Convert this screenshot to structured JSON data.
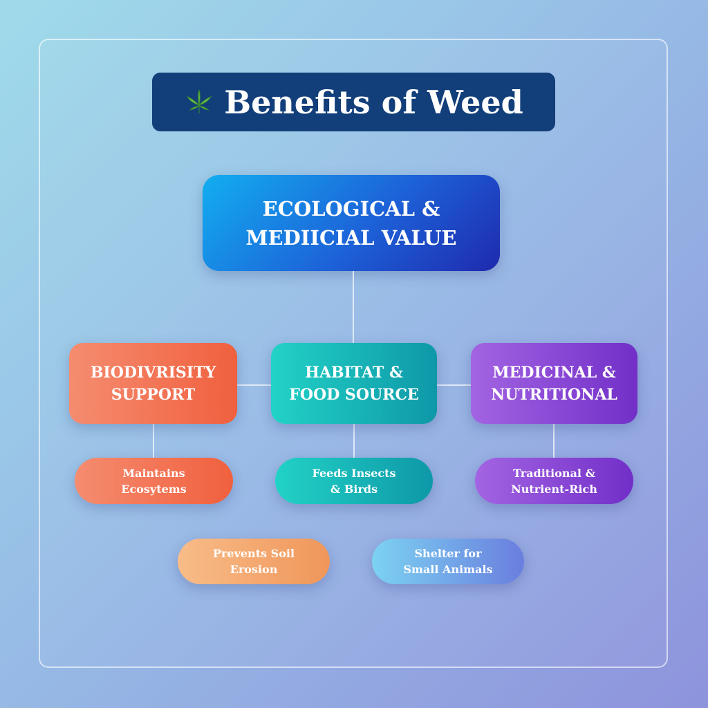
{
  "title": {
    "text": "Benefits of Weed",
    "icon": "cannabis-leaf-icon"
  },
  "root": {
    "text": "ECOLOGICAL &\nMEDIICIAL VALUE"
  },
  "categories": [
    {
      "label": "BIODIVRISITY\nSUPPORT",
      "detail": "Maintains\nEcosytems",
      "color": "#f26a4a"
    },
    {
      "label": "HABITAT &\nFOOD SOURCE",
      "detail": "Feeds Insects\n& Birds",
      "color": "#14b4b8"
    },
    {
      "label": "MEDICINAL &\nNUTRITIONAL",
      "detail": "Traditional &\nNutrient-Rich",
      "color": "#8a45d6"
    }
  ],
  "extras": [
    {
      "text": "Prevents Soil\nErosion",
      "color": "#f4a46c"
    },
    {
      "text": "Shelter for\nSmall Animals",
      "color": "#74a8ea"
    }
  ]
}
